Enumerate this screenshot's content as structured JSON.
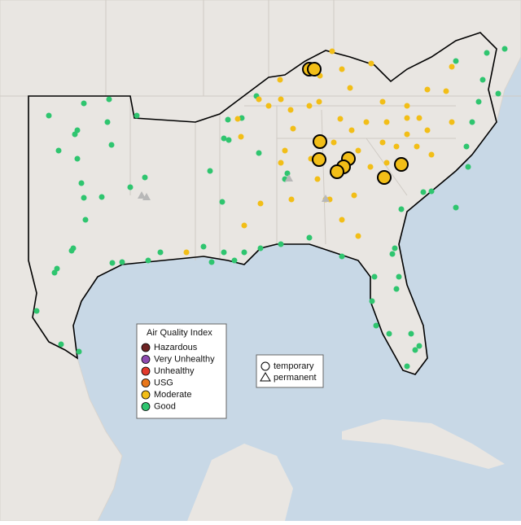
{
  "legend": {
    "title": "Air Quality Index",
    "items": [
      {
        "label": "Hazardous",
        "color": "#6e2424"
      },
      {
        "label": "Very Unhealthy",
        "color": "#8e4bb0"
      },
      {
        "label": "Unhealthy",
        "color": "#e23a2c"
      },
      {
        "label": "USG",
        "color": "#e8761a"
      },
      {
        "label": "Moderate",
        "color": "#f2be17"
      },
      {
        "label": "Good",
        "color": "#2fc56f"
      }
    ]
  },
  "shape_legend": {
    "items": [
      "temporary",
      "permanent"
    ]
  }
}
